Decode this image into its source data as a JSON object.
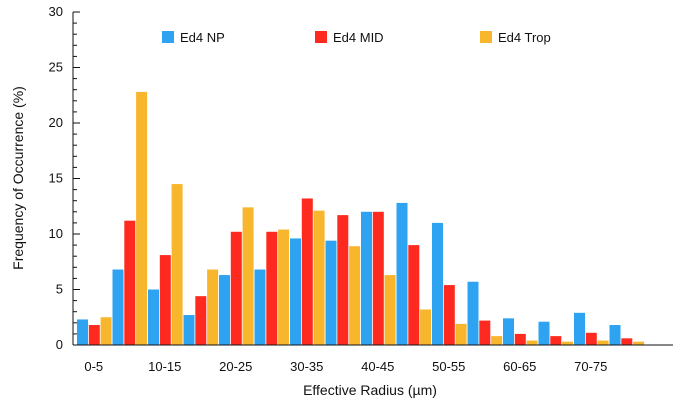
{
  "chart_data": {
    "type": "bar",
    "xlabel": "Effective Radius (µm)",
    "ylabel": "Frequency of Occurrence (%)",
    "ylim": [
      0,
      30
    ],
    "y_ticks": [
      0,
      5,
      10,
      15,
      20,
      25,
      30
    ],
    "x_tick_labels": [
      "0-5",
      "10-15",
      "20-25",
      "30-35",
      "40-45",
      "50-55",
      "60-65",
      "70-75"
    ],
    "categories": [
      "0-5",
      "5-10",
      "10-15",
      "15-20",
      "20-25",
      "25-30",
      "30-35",
      "35-40",
      "40-45",
      "45-50",
      "50-55",
      "55-60",
      "60-65",
      "65-70",
      "70-75",
      "75-80"
    ],
    "grid": false,
    "legend_position": "top",
    "series": [
      {
        "name": "Ed4 NP",
        "color": "#2ea3f2",
        "values": [
          2.3,
          6.8,
          5.0,
          2.7,
          6.3,
          6.8,
          9.6,
          9.4,
          12.0,
          12.8,
          11.0,
          5.7,
          2.4,
          2.1,
          2.9,
          1.8
        ]
      },
      {
        "name": "Ed4  MID",
        "color": "#ff2a1f",
        "values": [
          1.8,
          11.2,
          8.1,
          4.4,
          10.2,
          10.2,
          13.2,
          11.7,
          12.0,
          9.0,
          5.4,
          2.2,
          1.0,
          0.8,
          1.1,
          0.6
        ]
      },
      {
        "name": "Ed4 Trop",
        "color": "#f8b62d",
        "values": [
          2.5,
          22.8,
          14.5,
          6.8,
          12.4,
          10.4,
          12.1,
          8.9,
          6.3,
          3.2,
          1.9,
          0.8,
          0.4,
          0.3,
          0.4,
          0.3
        ]
      }
    ]
  }
}
